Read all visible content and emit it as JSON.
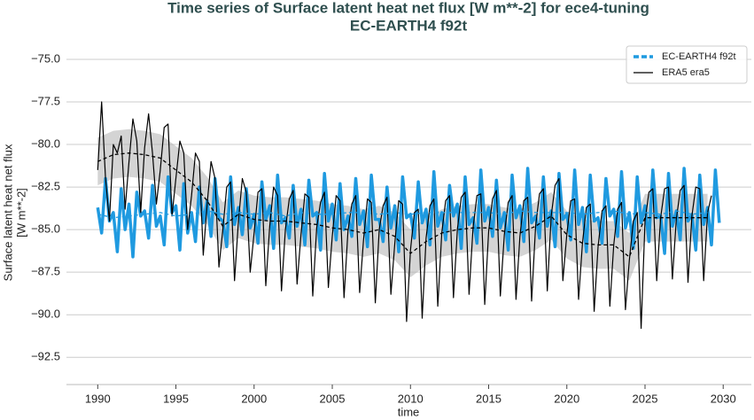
{
  "chart_data": {
    "type": "line",
    "title": "Time series of Surface latent heat net flux [W m**-2] for ece4-tuning",
    "subtitle": "EC-EARTH4 f92t",
    "y_label": [
      "Surface latent heat net flux",
      "[W m**-2]"
    ],
    "x_label": "time",
    "xlim": [
      1988.0,
      2031.8
    ],
    "ylim": [
      -73.7,
      -94.1
    ],
    "xticks": [
      1990,
      1995,
      2000,
      2005,
      2010,
      2015,
      2020,
      2025,
      2030
    ],
    "yticks": [
      {
        "value": -75,
        "label": "−75.0"
      },
      {
        "value": -77.5,
        "label": "−77.5"
      },
      {
        "value": -80,
        "label": "−80.0"
      },
      {
        "value": -82.5,
        "label": "−82.5"
      },
      {
        "value": -85,
        "label": "−85.0"
      },
      {
        "value": -87.5,
        "label": "−87.5"
      },
      {
        "value": -90,
        "label": "−90.0"
      },
      {
        "value": -92.5,
        "label": "−92.5"
      }
    ],
    "grid": true,
    "legend": "upper right",
    "x": [
      1990,
      1990.25,
      1990.5,
      1990.75,
      1991,
      1991.25,
      1991.5,
      1991.75,
      1992,
      1992.25,
      1992.5,
      1992.75,
      1993,
      1993.25,
      1993.5,
      1993.75,
      1994,
      1994.25,
      1994.5,
      1994.75,
      1995,
      1995.25,
      1995.5,
      1995.75,
      1996,
      1996.25,
      1996.5,
      1996.75,
      1997,
      1997.25,
      1997.5,
      1997.75,
      1998,
      1998.25,
      1998.5,
      1998.75,
      1999,
      1999.25,
      1999.5,
      1999.75,
      2000,
      2000.25,
      2000.5,
      2000.75,
      2001,
      2001.25,
      2001.5,
      2001.75,
      2002,
      2002.25,
      2002.5,
      2002.75,
      2003,
      2003.25,
      2003.5,
      2003.75,
      2004,
      2004.25,
      2004.5,
      2004.75,
      2005,
      2005.25,
      2005.5,
      2005.75,
      2006,
      2006.25,
      2006.5,
      2006.75,
      2007,
      2007.25,
      2007.5,
      2007.75,
      2008,
      2008.25,
      2008.5,
      2008.75,
      2009,
      2009.25,
      2009.5,
      2009.75,
      2010,
      2010.25,
      2010.5,
      2010.75,
      2011,
      2011.25,
      2011.5,
      2011.75,
      2012,
      2012.25,
      2012.5,
      2012.75,
      2013,
      2013.25,
      2013.5,
      2013.75,
      2014,
      2014.25,
      2014.5,
      2014.75,
      2015,
      2015.25,
      2015.5,
      2015.75,
      2016,
      2016.25,
      2016.5,
      2016.75,
      2017,
      2017.25,
      2017.5,
      2017.75,
      2018,
      2018.25,
      2018.5,
      2018.75,
      2019,
      2019.25,
      2019.5,
      2019.75,
      2020,
      2020.25,
      2020.5,
      2020.75,
      2021,
      2021.25,
      2021.5,
      2021.75,
      2022,
      2022.25,
      2022.5,
      2022.75,
      2023,
      2023.25,
      2023.5,
      2023.75,
      2024,
      2024.25,
      2024.5,
      2024.75,
      2025,
      2025.25,
      2025.5,
      2025.75,
      2026,
      2026.25,
      2026.5,
      2026.75,
      2027,
      2027.25,
      2027.5,
      2027.75,
      2028,
      2028.25,
      2028.5,
      2028.75,
      2029,
      2029.25,
      2029.5,
      2029.75
    ],
    "series": [
      {
        "name": "EC-EARTH4 f92t",
        "color": "#1f9ae0",
        "width": 3.5,
        "legend_dash": true,
        "values": [
          -83.7,
          -85.2,
          -82.0,
          -84.5,
          -84.0,
          -86.3,
          -82.6,
          -85.0,
          -83.5,
          -86.6,
          -82.8,
          -84.2,
          -83.9,
          -85.5,
          -82.4,
          -84.8,
          -84.2,
          -85.9,
          -81.9,
          -84.0,
          -83.6,
          -86.2,
          -82.3,
          -85.2,
          -84.0,
          -85.7,
          -82.5,
          -84.6,
          -83.3,
          -85.4,
          -82.0,
          -84.3,
          -84.5,
          -86.0,
          -81.9,
          -84.7,
          -83.7,
          -85.3,
          -82.6,
          -84.9,
          -84.1,
          -85.8,
          -82.2,
          -84.4,
          -83.6,
          -86.1,
          -81.8,
          -84.6,
          -84.3,
          -85.5,
          -82.4,
          -84.8,
          -83.8,
          -85.9,
          -82.1,
          -84.2,
          -84.0,
          -86.2,
          -81.7,
          -84.5,
          -83.5,
          -85.6,
          -82.3,
          -85.0,
          -84.2,
          -85.4,
          -82.0,
          -84.7,
          -83.9,
          -86.0,
          -81.8,
          -84.4,
          -84.4,
          -85.7,
          -82.5,
          -84.9,
          -83.6,
          -86.3,
          -81.9,
          -84.3,
          -84.1,
          -85.5,
          -82.2,
          -84.6,
          -83.8,
          -85.9,
          -81.6,
          -84.8,
          -84.0,
          -85.6,
          -82.4,
          -84.2,
          -83.5,
          -86.1,
          -81.9,
          -84.7,
          -84.3,
          -85.8,
          -81.5,
          -84.5,
          -83.7,
          -85.4,
          -82.1,
          -84.9,
          -84.0,
          -86.2,
          -81.8,
          -84.3,
          -83.6,
          -85.7,
          -81.4,
          -84.6,
          -84.2,
          -85.5,
          -81.9,
          -84.8,
          -83.9,
          -86.0,
          -81.7,
          -84.4,
          -84.1,
          -85.6,
          -81.5,
          -84.7,
          -83.7,
          -86.3,
          -81.8,
          -84.5,
          -84.3,
          -85.8,
          -82.0,
          -84.2,
          -83.8,
          -85.4,
          -81.6,
          -84.9,
          -84.0,
          -86.1,
          -81.9,
          -84.6,
          -83.6,
          -85.7,
          -81.5,
          -84.3,
          -84.2,
          -86.4,
          -81.7,
          -84.8,
          -83.9,
          -85.6,
          -81.4,
          -84.5,
          -84.1,
          -86.2,
          -81.8,
          -84.7,
          -83.7,
          -85.9,
          -81.5,
          -84.6
        ]
      },
      {
        "name": "ERA5 era5",
        "color": "#000000",
        "width": 1.2,
        "values": [
          -81.5,
          -77.5,
          -82.0,
          -84.5,
          -80.0,
          -80.5,
          -79.5,
          -83.8,
          -81.0,
          -78.5,
          -79.8,
          -84.0,
          -80.2,
          -78.2,
          -80.5,
          -83.5,
          -81.5,
          -79.0,
          -78.8,
          -84.2,
          -82.0,
          -79.8,
          -80.5,
          -85.0,
          -83.0,
          -80.5,
          -81.0,
          -86.5,
          -83.5,
          -81.0,
          -82.0,
          -87.2,
          -85.0,
          -82.5,
          -82.2,
          -88.0,
          -84.5,
          -82.0,
          -82.8,
          -87.5,
          -85.2,
          -82.8,
          -82.6,
          -88.3,
          -84.8,
          -82.5,
          -83.0,
          -88.6,
          -85.0,
          -83.2,
          -82.7,
          -88.2,
          -85.3,
          -82.9,
          -83.1,
          -88.9,
          -84.9,
          -83.4,
          -82.8,
          -88.4,
          -85.4,
          -83.0,
          -83.3,
          -89.0,
          -85.1,
          -83.5,
          -83.0,
          -88.7,
          -85.6,
          -83.2,
          -83.4,
          -89.3,
          -85.0,
          -83.6,
          -83.1,
          -88.8,
          -85.8,
          -83.3,
          -83.5,
          -90.4,
          -86.2,
          -84.0,
          -83.8,
          -90.2,
          -85.5,
          -83.6,
          -83.2,
          -89.5,
          -85.2,
          -83.3,
          -83.0,
          -89.0,
          -85.0,
          -83.1,
          -82.8,
          -88.8,
          -84.9,
          -83.0,
          -82.9,
          -89.4,
          -85.1,
          -83.2,
          -82.7,
          -88.9,
          -85.3,
          -83.4,
          -83.0,
          -89.1,
          -85.4,
          -83.3,
          -83.1,
          -89.2,
          -84.8,
          -82.9,
          -82.6,
          -88.6,
          -84.2,
          -82.4,
          -82.0,
          -88.0,
          -85.3,
          -83.3,
          -83.2,
          -89.1,
          -85.8,
          -83.7,
          -83.5,
          -89.8,
          -86.0,
          -83.9,
          -83.6,
          -89.5,
          -85.9,
          -83.8,
          -83.4,
          -89.7,
          -86.8,
          -84.5,
          -84.0,
          -90.8,
          -84.5,
          -82.8,
          -82.6,
          -88.0,
          -84.3,
          -82.6,
          -82.5,
          -87.9,
          -84.4,
          -82.7,
          -82.4,
          -88.1,
          -84.2,
          -82.5,
          -82.6,
          -88.0,
          -84.0,
          -83.0,
          null,
          null
        ]
      }
    ],
    "running_mean": [
      {
        "color": "#1f9ae0",
        "x": [
          1990,
          1991,
          1992,
          1993,
          1994,
          1995,
          1996,
          1997,
          1998,
          1999,
          2000,
          2001,
          2002,
          2003,
          2004,
          2005,
          2006,
          2007,
          2008,
          2009,
          2010,
          2011,
          2012,
          2013,
          2014,
          2015,
          2016,
          2017,
          2018,
          2019,
          2020,
          2021,
          2022,
          2023,
          2024,
          2025,
          2026,
          2027,
          2028,
          2029
        ],
        "values": [
          -84.1,
          -84.3,
          -84.2,
          -84.1,
          -84.0,
          -84.2,
          -84.1,
          -83.9,
          -84.1,
          -84.0,
          -84.1,
          -84.0,
          -84.2,
          -84.0,
          -84.1,
          -84.1,
          -84.0,
          -84.0,
          -84.1,
          -84.0,
          -84.1,
          -84.0,
          -84.0,
          -84.0,
          -84.0,
          -84.0,
          -84.1,
          -83.9,
          -84.0,
          -84.0,
          -84.0,
          -84.1,
          -84.0,
          -83.9,
          -84.1,
          -84.0,
          -84.1,
          -83.9,
          -84.1,
          -84.0
        ]
      },
      {
        "color": "#000000",
        "band_color": "#b0b0b0",
        "x": [
          1990,
          1991,
          1992,
          1993,
          1994,
          1995,
          1996,
          1997,
          1998,
          1999,
          2000,
          2001,
          2002,
          2003,
          2004,
          2005,
          2006,
          2007,
          2008,
          2009,
          2010,
          2011,
          2012,
          2013,
          2014,
          2015,
          2016,
          2017,
          2018,
          2019,
          2020,
          2021,
          2022,
          2023,
          2024,
          2025,
          2026,
          2027,
          2028,
          2029
        ],
        "values": [
          -81.0,
          -80.6,
          -80.5,
          -80.6,
          -80.8,
          -81.5,
          -82.2,
          -83.3,
          -84.8,
          -84.1,
          -84.4,
          -84.5,
          -84.5,
          -84.6,
          -84.7,
          -84.9,
          -85.0,
          -85.2,
          -85.0,
          -85.4,
          -86.4,
          -85.7,
          -85.2,
          -85.0,
          -84.9,
          -84.9,
          -85.1,
          -85.2,
          -84.8,
          -84.2,
          -85.3,
          -85.8,
          -85.9,
          -85.9,
          -86.6,
          -84.3,
          -84.3,
          -84.3,
          -84.3,
          -84.3
        ],
        "band_lower": [
          -82.4,
          -82.0,
          -81.9,
          -82.0,
          -82.2,
          -82.9,
          -83.6,
          -84.7,
          -86.2,
          -85.5,
          -85.8,
          -85.9,
          -85.9,
          -86.0,
          -86.1,
          -86.3,
          -86.4,
          -86.6,
          -86.4,
          -86.8,
          -87.8,
          -87.1,
          -86.6,
          -86.4,
          -86.3,
          -86.3,
          -86.5,
          -86.6,
          -86.2,
          -85.6,
          -86.7,
          -87.2,
          -87.3,
          -87.3,
          -88.0,
          -85.7,
          -85.7,
          -85.7,
          -85.7,
          -85.7
        ],
        "band_upper": [
          -79.6,
          -79.2,
          -79.1,
          -79.2,
          -79.4,
          -80.1,
          -80.8,
          -81.9,
          -83.4,
          -82.7,
          -83.0,
          -83.1,
          -83.1,
          -83.2,
          -83.3,
          -83.5,
          -83.6,
          -83.8,
          -83.6,
          -84.0,
          -85.0,
          -84.3,
          -83.8,
          -83.6,
          -83.5,
          -83.5,
          -83.7,
          -83.8,
          -83.4,
          -82.8,
          -83.9,
          -84.4,
          -84.5,
          -84.5,
          -85.2,
          -82.9,
          -82.9,
          -82.9,
          -82.9,
          -82.9
        ]
      }
    ]
  }
}
